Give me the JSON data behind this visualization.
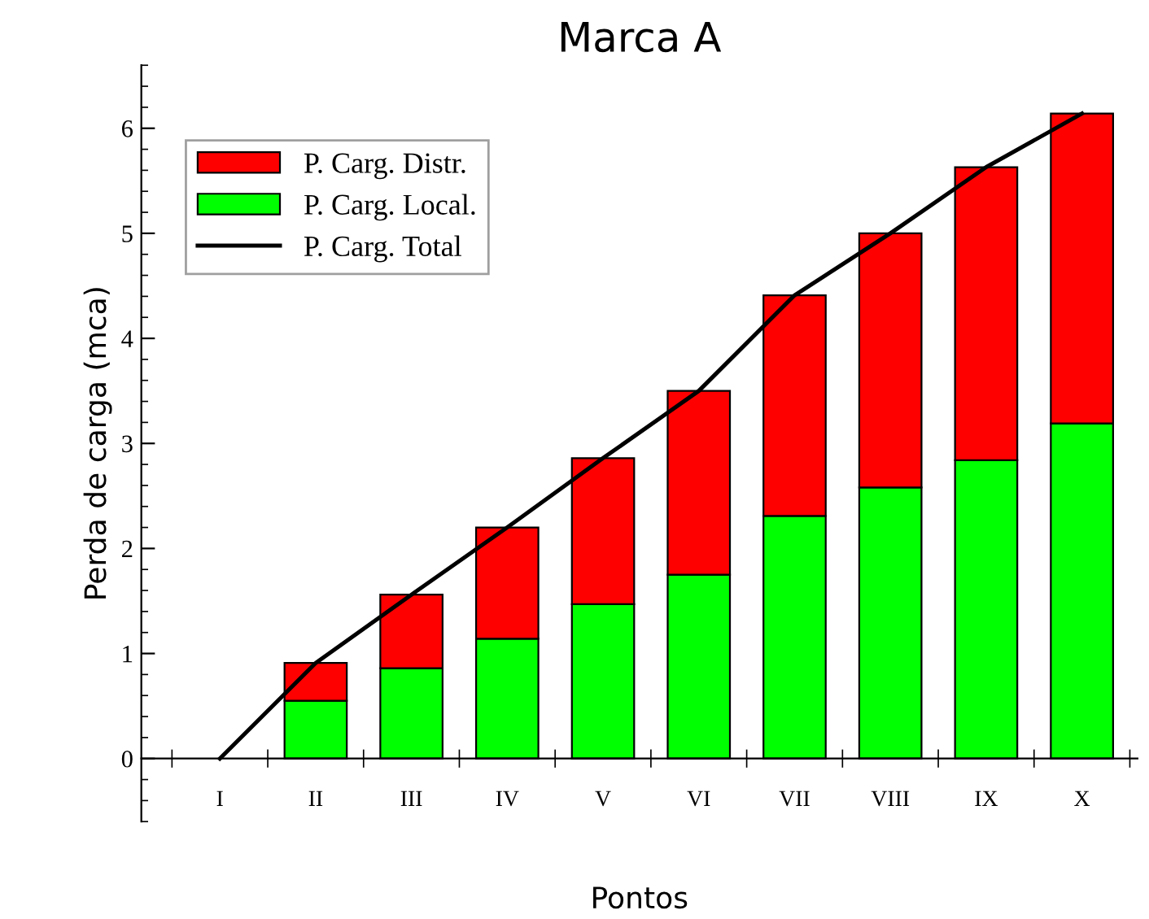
{
  "chart_data": {
    "type": "bar",
    "title": "Marca A",
    "xlabel": "Pontos",
    "ylabel": "Perda de carga (mca)",
    "categories": [
      "I",
      "II",
      "III",
      "IV",
      "V",
      "VI",
      "VII",
      "VIII",
      "IX",
      "X"
    ],
    "stacked": true,
    "series": [
      {
        "name": "P. Carg. Local.",
        "color": "#00ff00",
        "values": [
          null,
          0.55,
          0.86,
          1.14,
          1.47,
          1.75,
          2.31,
          2.58,
          2.84,
          3.19
        ]
      },
      {
        "name": "P. Carg. Distr.",
        "color": "#ff0000",
        "values": [
          null,
          0.36,
          0.7,
          1.06,
          1.39,
          1.75,
          2.1,
          2.42,
          2.79,
          2.95
        ]
      },
      {
        "name": "P. Carg. Total",
        "type": "line",
        "color": "#000000",
        "values": [
          0,
          0.91,
          1.56,
          2.2,
          2.86,
          3.5,
          4.41,
          5.0,
          5.63,
          6.14
        ]
      }
    ],
    "ylim": [
      -0.6,
      6.6
    ],
    "yticks": [
      0,
      1,
      2,
      3,
      4,
      5,
      6
    ],
    "legend": "top left",
    "grid": false,
    "line_style": "solid",
    "marker": "none"
  }
}
